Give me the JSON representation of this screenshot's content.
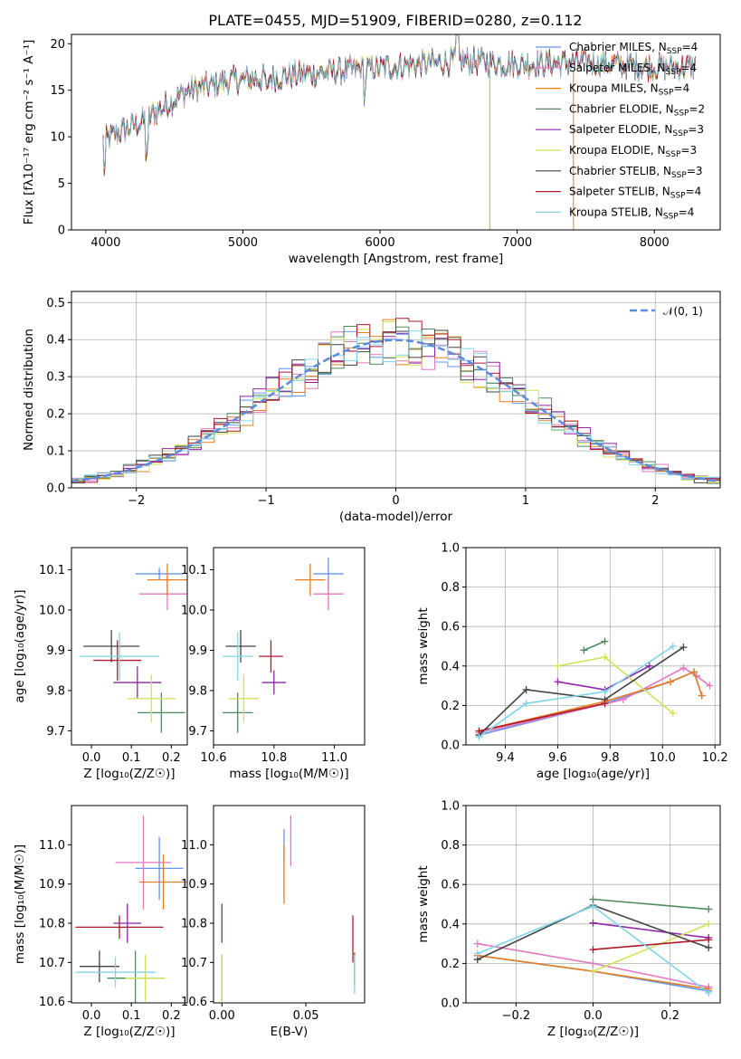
{
  "figure_title": "PLATE=0455, MJD=51909, FIBERID=0280, z=0.112",
  "colors": {
    "Chabrier MILES": "#6495ed",
    "Salpeter MILES": "#e377c2",
    "Kroupa MILES": "#e67e22",
    "Chabrier ELODIE": "#4e8a5b",
    "Salpeter ELODIE": "#8e24aa",
    "Kroupa ELODIE": "#d4e157",
    "Chabrier STELIB": "#444444",
    "Salpeter STELIB": "#b2182b",
    "Kroupa STELIB": "#7fd4e8"
  },
  "chart_data": [
    {
      "id": "spectrum",
      "type": "line",
      "xlabel": "wavelength [Angstrom, rest frame]",
      "ylabel": "Flux [fλ10⁻¹⁷ erg cm⁻² s⁻¹ A⁻¹]",
      "xlim": [
        3750,
        8480
      ],
      "ylim": [
        0,
        21
      ],
      "xticks": [
        "4000",
        "5000",
        "6000",
        "7000",
        "8000"
      ],
      "yticks": [
        "0",
        "5",
        "10",
        "15",
        "20"
      ],
      "grid": false,
      "legend_position": "top-right",
      "continuum_anchors": {
        "x": [
          3980,
          4100,
          4250,
          4400,
          4600,
          4900,
          5300,
          5800,
          6300,
          6600,
          7000,
          7500,
          8000,
          8300
        ],
        "y": [
          9.5,
          10.5,
          11.5,
          13,
          15,
          16,
          16.5,
          17.2,
          17.8,
          18.2,
          17.8,
          18,
          17.5,
          17.5
        ]
      },
      "series": [
        {
          "name": "Chabrier MILES, N_SSP=4",
          "legend_label": "Chabrier MILES, N",
          "legend_sub": "SSP",
          "legend_tail": "=4"
        },
        {
          "name": "Salpeter MILES, N_SSP=4",
          "legend_label": "Salpeter MILES, N",
          "legend_sub": "SSP",
          "legend_tail": "=4"
        },
        {
          "name": "Kroupa MILES, N_SSP=4",
          "legend_label": "Kroupa MILES, N",
          "legend_sub": "SSP",
          "legend_tail": "=4"
        },
        {
          "name": "Chabrier ELODIE, N_SSP=2",
          "legend_label": "Chabrier ELODIE, N",
          "legend_sub": "SSP",
          "legend_tail": "=2"
        },
        {
          "name": "Salpeter ELODIE, N_SSP=3",
          "legend_label": "Salpeter ELODIE, N",
          "legend_sub": "SSP",
          "legend_tail": "=3"
        },
        {
          "name": "Kroupa ELODIE, N_SSP=3",
          "legend_label": "Kroupa ELODIE, N",
          "legend_sub": "SSP",
          "legend_tail": "=3"
        },
        {
          "name": "Chabrier STELIB, N_SSP=3",
          "legend_label": "Chabrier STELIB, N",
          "legend_sub": "SSP",
          "legend_tail": "=3"
        },
        {
          "name": "Salpeter STELIB, N_SSP=4",
          "legend_label": "Salpeter STELIB, N",
          "legend_sub": "SSP",
          "legend_tail": "=4"
        },
        {
          "name": "Kroupa STELIB, N_SSP=4",
          "legend_label": "Kroupa STELIB, N",
          "legend_sub": "SSP",
          "legend_tail": "=4"
        }
      ]
    },
    {
      "id": "residuals",
      "type": "histogram",
      "xlabel": "(data-model)/error",
      "ylabel": "Normed distribution",
      "xlim": [
        -2.5,
        2.5
      ],
      "ylim": [
        0,
        0.53
      ],
      "xticks": [
        "−2",
        "−1",
        "0",
        "1",
        "2"
      ],
      "yticks": [
        "0.0",
        "0.1",
        "0.2",
        "0.3",
        "0.4",
        "0.5"
      ],
      "grid": true,
      "legend_position": "top-right",
      "legend_label": "𝒩(0, 1)",
      "bin_width": 0.1,
      "reference_curve": "normal(0,1)"
    },
    {
      "id": "age_vs_Z",
      "type": "errorbar",
      "xlabel": "Z [log₁₀(Z/Z☉)]",
      "ylabel": "age  [log₁₀(age/yr)]",
      "xlim": [
        -0.05,
        0.24
      ],
      "ylim": [
        9.665,
        10.155
      ],
      "xticks": [
        "0.0",
        "0.1",
        "0.2"
      ],
      "yticks": [
        "9.7",
        "9.8",
        "9.9",
        "10.0",
        "10.1"
      ],
      "grid": false,
      "points": [
        {
          "model": "Chabrier MILES",
          "x": 0.17,
          "y": 10.09,
          "xerr": 0.06,
          "yerr": 0.015
        },
        {
          "model": "Salpeter MILES",
          "x": 0.19,
          "y": 10.04,
          "xerr": 0.07,
          "yerr": 0.04
        },
        {
          "model": "Kroupa MILES",
          "x": 0.19,
          "y": 10.075,
          "xerr": 0.05,
          "yerr": 0.04
        },
        {
          "model": "Chabrier ELODIE",
          "x": 0.175,
          "y": 9.745,
          "xerr": 0.06,
          "yerr": 0.05
        },
        {
          "model": "Salpeter ELODIE",
          "x": 0.115,
          "y": 9.82,
          "xerr": 0.06,
          "yerr": 0.04
        },
        {
          "model": "Kroupa ELODIE",
          "x": 0.15,
          "y": 9.78,
          "xerr": 0.06,
          "yerr": 0.06
        },
        {
          "model": "Chabrier STELIB",
          "x": 0.05,
          "y": 9.91,
          "xerr": 0.07,
          "yerr": 0.04
        },
        {
          "model": "Salpeter STELIB",
          "x": 0.065,
          "y": 9.875,
          "xerr": 0.06,
          "yerr": 0.05
        },
        {
          "model": "Kroupa STELIB",
          "x": 0.07,
          "y": 9.885,
          "xerr": 0.1,
          "yerr": 0.06
        }
      ]
    },
    {
      "id": "age_vs_mass",
      "type": "errorbar",
      "xlabel": "mass [log₁₀(M/M☉)]",
      "ylabel": "",
      "xlim": [
        10.6,
        11.1
      ],
      "ylim": [
        9.665,
        10.155
      ],
      "xticks": [
        "10.6",
        "10.8",
        "11.0"
      ],
      "yticks": [
        "9.7",
        "9.8",
        "9.9",
        "10.0",
        "10.1"
      ],
      "grid": false,
      "points": [
        {
          "model": "Chabrier MILES",
          "x": 10.98,
          "y": 10.09,
          "xerr": 0.05,
          "yerr": 0.04
        },
        {
          "model": "Salpeter MILES",
          "x": 10.98,
          "y": 10.04,
          "xerr": 0.05,
          "yerr": 0.04
        },
        {
          "model": "Kroupa MILES",
          "x": 10.92,
          "y": 10.075,
          "xerr": 0.05,
          "yerr": 0.04
        },
        {
          "model": "Chabrier ELODIE",
          "x": 10.68,
          "y": 9.745,
          "xerr": 0.05,
          "yerr": 0.05
        },
        {
          "model": "Salpeter ELODIE",
          "x": 10.8,
          "y": 9.82,
          "xerr": 0.04,
          "yerr": 0.03
        },
        {
          "model": "Kroupa ELODIE",
          "x": 10.7,
          "y": 9.78,
          "xerr": 0.05,
          "yerr": 0.06
        },
        {
          "model": "Chabrier STELIB",
          "x": 10.69,
          "y": 9.91,
          "xerr": 0.05,
          "yerr": 0.04
        },
        {
          "model": "Salpeter STELIB",
          "x": 10.79,
          "y": 9.885,
          "xerr": 0.04,
          "yerr": 0.04
        },
        {
          "model": "Kroupa STELIB",
          "x": 10.68,
          "y": 9.885,
          "xerr": 0.05,
          "yerr": 0.06
        }
      ]
    },
    {
      "id": "weight_vs_age",
      "type": "line",
      "xlabel": "age  [log₁₀(age/yr)]",
      "ylabel": "mass weight",
      "xlim": [
        9.25,
        10.22
      ],
      "ylim": [
        0,
        1
      ],
      "xticks": [
        "9.4",
        "9.6",
        "9.8",
        "10.0",
        "10.2"
      ],
      "yticks": [
        "0.0",
        "0.2",
        "0.4",
        "0.6",
        "0.8",
        "1.0"
      ],
      "grid": true,
      "series": [
        {
          "model": "Chabrier MILES",
          "x": [
            9.3,
            9.78,
            10.03,
            10.12,
            10.15
          ],
          "y": [
            0.05,
            0.21,
            0.32,
            0.37,
            0.25
          ]
        },
        {
          "model": "Salpeter MILES",
          "x": [
            9.3,
            9.85,
            10.08,
            10.13,
            10.18
          ],
          "y": [
            0.06,
            0.23,
            0.39,
            0.35,
            0.3
          ]
        },
        {
          "model": "Kroupa MILES",
          "x": [
            9.3,
            9.78,
            10.03,
            10.12,
            10.15
          ],
          "y": [
            0.07,
            0.22,
            0.32,
            0.37,
            0.25
          ]
        },
        {
          "model": "Chabrier ELODIE",
          "x": [
            9.7,
            9.78
          ],
          "y": [
            0.48,
            0.525
          ]
        },
        {
          "model": "Salpeter ELODIE",
          "x": [
            9.6,
            9.78,
            9.95
          ],
          "y": [
            0.32,
            0.28,
            0.4
          ]
        },
        {
          "model": "Kroupa ELODIE",
          "x": [
            9.6,
            9.78,
            10.04
          ],
          "y": [
            0.4,
            0.445,
            0.16
          ]
        },
        {
          "model": "Chabrier STELIB",
          "x": [
            9.3,
            9.48,
            9.78,
            10.08
          ],
          "y": [
            0.05,
            0.28,
            0.23,
            0.495
          ]
        },
        {
          "model": "Salpeter STELIB",
          "x": [
            9.3,
            9.78
          ],
          "y": [
            0.07,
            0.21
          ]
        },
        {
          "model": "Kroupa STELIB",
          "x": [
            9.3,
            9.48,
            9.78,
            10.04
          ],
          "y": [
            0.04,
            0.21,
            0.27,
            0.5
          ]
        }
      ]
    },
    {
      "id": "mass_vs_Z",
      "type": "errorbar",
      "xlabel": "Z [log₁₀(Z/Z☉)]",
      "ylabel": "mass [log₁₀(M/M☉)]",
      "xlim": [
        -0.05,
        0.24
      ],
      "ylim": [
        10.597,
        11.1
      ],
      "xticks": [
        "0.0",
        "0.1",
        "0.2"
      ],
      "yticks": [
        "10.6",
        "10.7",
        "10.8",
        "10.9",
        "11.0"
      ],
      "grid": false,
      "points": [
        {
          "model": "Chabrier MILES",
          "x": 0.17,
          "y": 10.94,
          "xerr": 0.06,
          "yerr": 0.08
        },
        {
          "model": "Salpeter MILES",
          "x": 0.13,
          "y": 10.955,
          "xerr": 0.07,
          "yerr": 0.12
        },
        {
          "model": "Kroupa MILES",
          "x": 0.18,
          "y": 10.905,
          "xerr": 0.06,
          "yerr": 0.07
        },
        {
          "model": "Chabrier ELODIE",
          "x": 0.11,
          "y": 10.66,
          "xerr": 0.07,
          "yerr": 0.07
        },
        {
          "model": "Salpeter ELODIE",
          "x": 0.09,
          "y": 10.8,
          "xerr": 0.035,
          "yerr": 0.05
        },
        {
          "model": "Kroupa ELODIE",
          "x": 0.135,
          "y": 10.66,
          "xerr": 0.05,
          "yerr": 0.06
        },
        {
          "model": "Chabrier STELIB",
          "x": 0.02,
          "y": 10.69,
          "xerr": 0.05,
          "yerr": 0.04
        },
        {
          "model": "Salpeter STELIB",
          "x": 0.07,
          "y": 10.79,
          "xerr": 0.11,
          "yerr": 0.03
        },
        {
          "model": "Kroupa STELIB",
          "x": 0.06,
          "y": 10.675,
          "xerr": 0.1,
          "yerr": 0.04
        }
      ]
    },
    {
      "id": "mass_vs_ebv",
      "type": "errorbar",
      "xlabel": "E(B-V)",
      "ylabel": "",
      "xlim": [
        -0.005,
        0.085
      ],
      "ylim": [
        10.597,
        11.1
      ],
      "xticks": [
        "0.00",
        "0.05"
      ],
      "yticks": [
        "10.6",
        "10.7",
        "10.8",
        "10.9",
        "11.0"
      ],
      "grid": false,
      "points": [
        {
          "model": "Chabrier MILES",
          "x": 0.037,
          "y": 11.0,
          "xerr": 0.0,
          "yerr": 0.04
        },
        {
          "model": "Salpeter MILES",
          "x": 0.041,
          "y": 11.01,
          "xerr": 0.0,
          "yerr": 0.065
        },
        {
          "model": "Kroupa MILES",
          "x": 0.037,
          "y": 10.925,
          "xerr": 0.0,
          "yerr": 0.075
        },
        {
          "model": "Chabrier ELODIE",
          "x": 0.0,
          "y": 10.66,
          "xerr": 0.0,
          "yerr": 0.06
        },
        {
          "model": "Salpeter ELODIE",
          "x": 0.0,
          "y": 10.8,
          "xerr": 0.0,
          "yerr": 0.05
        },
        {
          "model": "Kroupa ELODIE",
          "x": 0.0,
          "y": 10.66,
          "xerr": 0.0,
          "yerr": 0.06
        },
        {
          "model": "Chabrier STELIB",
          "x": 0.079,
          "y": 10.685,
          "xerr": 0.0,
          "yerr": 0.04
        },
        {
          "model": "Salpeter STELIB",
          "x": 0.078,
          "y": 10.76,
          "xerr": 0.0,
          "yerr": 0.06
        },
        {
          "model": "Kroupa STELIB",
          "x": 0.079,
          "y": 10.67,
          "xerr": 0.0,
          "yerr": 0.05
        }
      ]
    },
    {
      "id": "weight_vs_Z",
      "type": "line",
      "xlabel": "Z [log₁₀(Z/Z☉)]",
      "ylabel": "mass weight",
      "xlim": [
        -0.33,
        0.33
      ],
      "ylim": [
        0,
        1
      ],
      "xticks": [
        "−0.2",
        "0.0",
        "0.2"
      ],
      "yticks": [
        "0.0",
        "0.2",
        "0.4",
        "0.6",
        "0.8",
        "1.0"
      ],
      "grid": true,
      "series": [
        {
          "model": "Chabrier MILES",
          "x": [
            -0.3,
            0.0,
            0.3
          ],
          "y": [
            0.24,
            0.16,
            0.06
          ]
        },
        {
          "model": "Salpeter MILES",
          "x": [
            -0.3,
            0.0,
            0.3
          ],
          "y": [
            0.3,
            0.2,
            0.08
          ]
        },
        {
          "model": "Kroupa MILES",
          "x": [
            -0.3,
            0.0,
            0.3
          ],
          "y": [
            0.24,
            0.16,
            0.07
          ]
        },
        {
          "model": "Chabrier ELODIE",
          "x": [
            0.0,
            0.3
          ],
          "y": [
            0.525,
            0.475
          ]
        },
        {
          "model": "Salpeter ELODIE",
          "x": [
            0.0,
            0.3
          ],
          "y": [
            0.405,
            0.33
          ]
        },
        {
          "model": "Kroupa ELODIE",
          "x": [
            0.0,
            0.3
          ],
          "y": [
            0.16,
            0.4
          ]
        },
        {
          "model": "Chabrier STELIB",
          "x": [
            -0.3,
            0.0,
            0.3
          ],
          "y": [
            0.22,
            0.495,
            0.28
          ]
        },
        {
          "model": "Salpeter STELIB",
          "x": [
            0.0,
            0.3
          ],
          "y": [
            0.27,
            0.32
          ]
        },
        {
          "model": "Kroupa STELIB",
          "x": [
            -0.3,
            0.0,
            0.3
          ],
          "y": [
            0.25,
            0.49,
            0.05
          ]
        }
      ]
    }
  ]
}
